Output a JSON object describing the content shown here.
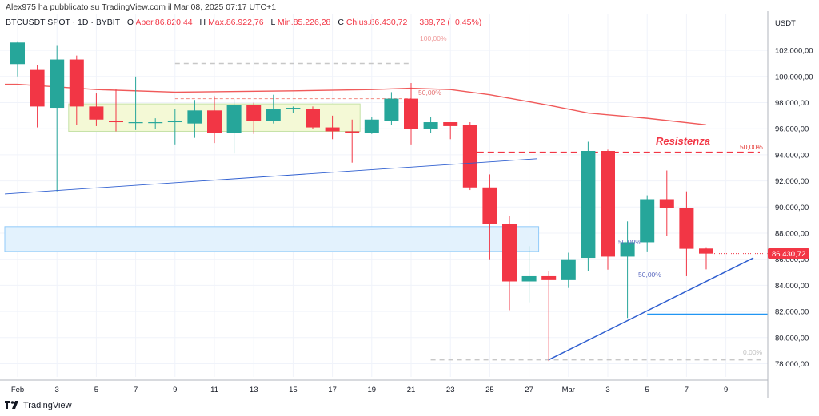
{
  "header": {
    "publisher_line": "Alex975 ha pubblicato su TradingView.com il Mar 08, 2025 07:17 UTC+1",
    "symbol": "BTCUSDT SPOT · 1D · BYBIT",
    "open_label": "O",
    "open_value": "Aper.86.820,44",
    "high_label": "H",
    "high_value": "Max.86.922,76",
    "low_label": "L",
    "low_value": "Min.85.226,28",
    "close_label": "C",
    "close_value": "Chius.86.430,72",
    "change_value": "−389,72 (−0,45%)"
  },
  "footer": {
    "brand": "TradingView"
  },
  "colors": {
    "up": "#26a69a",
    "down": "#f23645",
    "ma": "#f05a5a",
    "trend": "#2f5fd0",
    "zone": "#e3f2fd",
    "rect": "#f4f9d6"
  },
  "chart_data": {
    "type": "candlestick",
    "currency_label": "USDT",
    "x_ticks": [
      "Feb",
      "3",
      "5",
      "7",
      "9",
      "11",
      "13",
      "15",
      "17",
      "19",
      "21",
      "23",
      "25",
      "27",
      "Mar",
      "3",
      "5",
      "7",
      "9"
    ],
    "y_ticks": [
      "78.000,00",
      "80.000,00",
      "82.000,00",
      "84.000,00",
      "86.000,00",
      "88.000,00",
      "90.000,00",
      "92.000,00",
      "94.000,00",
      "96.000,00",
      "98.000,00",
      "100.000,00",
      "102.000,00"
    ],
    "ylim": [
      77000,
      104000
    ],
    "last_price_label": "86.430,72",
    "candles": [
      {
        "date": "2025-02-01",
        "open": 100950,
        "high": 102700,
        "low": 100000,
        "close": 102600
      },
      {
        "date": "2025-02-02",
        "open": 100500,
        "high": 100900,
        "low": 96100,
        "close": 97700
      },
      {
        "date": "2025-02-03",
        "open": 97600,
        "high": 102400,
        "low": 91200,
        "close": 101300
      },
      {
        "date": "2025-02-04",
        "open": 101300,
        "high": 101600,
        "low": 96300,
        "close": 97700
      },
      {
        "date": "2025-02-05",
        "open": 97700,
        "high": 98700,
        "low": 96200,
        "close": 96700
      },
      {
        "date": "2025-02-06",
        "open": 96600,
        "high": 99000,
        "low": 95800,
        "close": 96500
      },
      {
        "date": "2025-02-07",
        "open": 96500,
        "high": 100000,
        "low": 95900,
        "close": 96500
      },
      {
        "date": "2025-02-08",
        "open": 96500,
        "high": 96800,
        "low": 96000,
        "close": 96500
      },
      {
        "date": "2025-02-09",
        "open": 96500,
        "high": 97500,
        "low": 94800,
        "close": 96600
      },
      {
        "date": "2025-02-10",
        "open": 96400,
        "high": 98200,
        "low": 95300,
        "close": 97400
      },
      {
        "date": "2025-02-11",
        "open": 97400,
        "high": 98500,
        "low": 94900,
        "close": 95700
      },
      {
        "date": "2025-02-12",
        "open": 95700,
        "high": 98300,
        "low": 94100,
        "close": 97800
      },
      {
        "date": "2025-02-13",
        "open": 97800,
        "high": 98000,
        "low": 95600,
        "close": 96600
      },
      {
        "date": "2025-02-14",
        "open": 96600,
        "high": 98600,
        "low": 96400,
        "close": 97500
      },
      {
        "date": "2025-02-15",
        "open": 97500,
        "high": 97700,
        "low": 97200,
        "close": 97600
      },
      {
        "date": "2025-02-16",
        "open": 97500,
        "high": 97700,
        "low": 96000,
        "close": 96100
      },
      {
        "date": "2025-02-17",
        "open": 96100,
        "high": 97000,
        "low": 95200,
        "close": 95800
      },
      {
        "date": "2025-02-18",
        "open": 95800,
        "high": 96700,
        "low": 93400,
        "close": 95700
      },
      {
        "date": "2025-02-19",
        "open": 95700,
        "high": 96900,
        "low": 95600,
        "close": 96700
      },
      {
        "date": "2025-02-20",
        "open": 96600,
        "high": 98800,
        "low": 96300,
        "close": 98300
      },
      {
        "date": "2025-02-21",
        "open": 98300,
        "high": 99500,
        "low": 94800,
        "close": 96000
      },
      {
        "date": "2025-02-22",
        "open": 96000,
        "high": 96900,
        "low": 95700,
        "close": 96500
      },
      {
        "date": "2025-02-23",
        "open": 96500,
        "high": 96500,
        "low": 95200,
        "close": 96200
      },
      {
        "date": "2025-02-24",
        "open": 96300,
        "high": 96500,
        "low": 91300,
        "close": 91500
      },
      {
        "date": "2025-02-25",
        "open": 91500,
        "high": 92500,
        "low": 86000,
        "close": 88700
      },
      {
        "date": "2025-02-26",
        "open": 88700,
        "high": 89300,
        "low": 82100,
        "close": 84300
      },
      {
        "date": "2025-02-27",
        "open": 84300,
        "high": 87000,
        "low": 82700,
        "close": 84700
      },
      {
        "date": "2025-02-28",
        "open": 84700,
        "high": 85100,
        "low": 78200,
        "close": 84400
      },
      {
        "date": "2025-03-01",
        "open": 84400,
        "high": 86500,
        "low": 83800,
        "close": 86000
      },
      {
        "date": "2025-03-02",
        "open": 86100,
        "high": 95000,
        "low": 85100,
        "close": 94300
      },
      {
        "date": "2025-03-03",
        "open": 94300,
        "high": 94400,
        "low": 85200,
        "close": 86200
      },
      {
        "date": "2025-03-04",
        "open": 86200,
        "high": 88900,
        "low": 81500,
        "close": 87300
      },
      {
        "date": "2025-03-05",
        "open": 87300,
        "high": 90900,
        "low": 86600,
        "close": 90600
      },
      {
        "date": "2025-03-06",
        "open": 90600,
        "high": 92800,
        "low": 87800,
        "close": 89900
      },
      {
        "date": "2025-03-07",
        "open": 89900,
        "high": 91200,
        "low": 84700,
        "close": 86800
      },
      {
        "date": "2025-03-08",
        "open": 86820,
        "high": 86923,
        "low": 85226,
        "close": 86431
      }
    ],
    "moving_average": [
      {
        "date": "2025-02-01",
        "value": 99400
      },
      {
        "date": "2025-02-05",
        "value": 99000
      },
      {
        "date": "2025-02-09",
        "value": 98800
      },
      {
        "date": "2025-02-15",
        "value": 98900
      },
      {
        "date": "2025-02-19",
        "value": 99000
      },
      {
        "date": "2025-02-21",
        "value": 99100
      },
      {
        "date": "2025-02-23",
        "value": 99000
      },
      {
        "date": "2025-02-25",
        "value": 98600
      },
      {
        "date": "2025-02-28",
        "value": 97800
      },
      {
        "date": "2025-03-02",
        "value": 97200
      },
      {
        "date": "2025-03-05",
        "value": 96800
      },
      {
        "date": "2025-03-08",
        "value": 96300
      }
    ],
    "annotations": {
      "resistance_label": "Resistenza",
      "resistance_level": 94200,
      "fib_top_label": "100,00%",
      "fib_mid_label_1": "50,00%",
      "fib_mid_label_2": "50,00%",
      "fib_mid_label_3": "50,00%",
      "fib_mid_label_4": "50,00%",
      "fib_bottom_label": "0,00%"
    }
  }
}
